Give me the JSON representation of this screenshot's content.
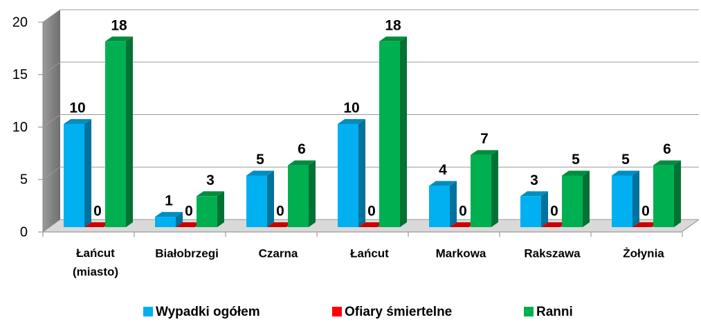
{
  "chart_data": {
    "type": "bar3d",
    "categories": [
      "Łańcut (miasto)",
      "Białobrzegi",
      "Czarna",
      "Łańcut",
      "Markowa",
      "Rakszawa",
      "Żołynia"
    ],
    "series": [
      {
        "name": "Wypadki ogółem",
        "color": "#00b0f0",
        "values": [
          10,
          1,
          5,
          10,
          4,
          3,
          5
        ]
      },
      {
        "name": "Ofiary śmiertelne",
        "color": "#ff0000",
        "values": [
          0,
          0,
          0,
          0,
          0,
          0,
          0
        ]
      },
      {
        "name": "Ranni",
        "color": "#00b050",
        "values": [
          18,
          3,
          6,
          18,
          7,
          5,
          6
        ]
      }
    ],
    "ylim": [
      0,
      20
    ],
    "yticks": [
      0,
      5,
      10,
      15,
      20
    ],
    "grid": true,
    "legend": "bottom"
  }
}
